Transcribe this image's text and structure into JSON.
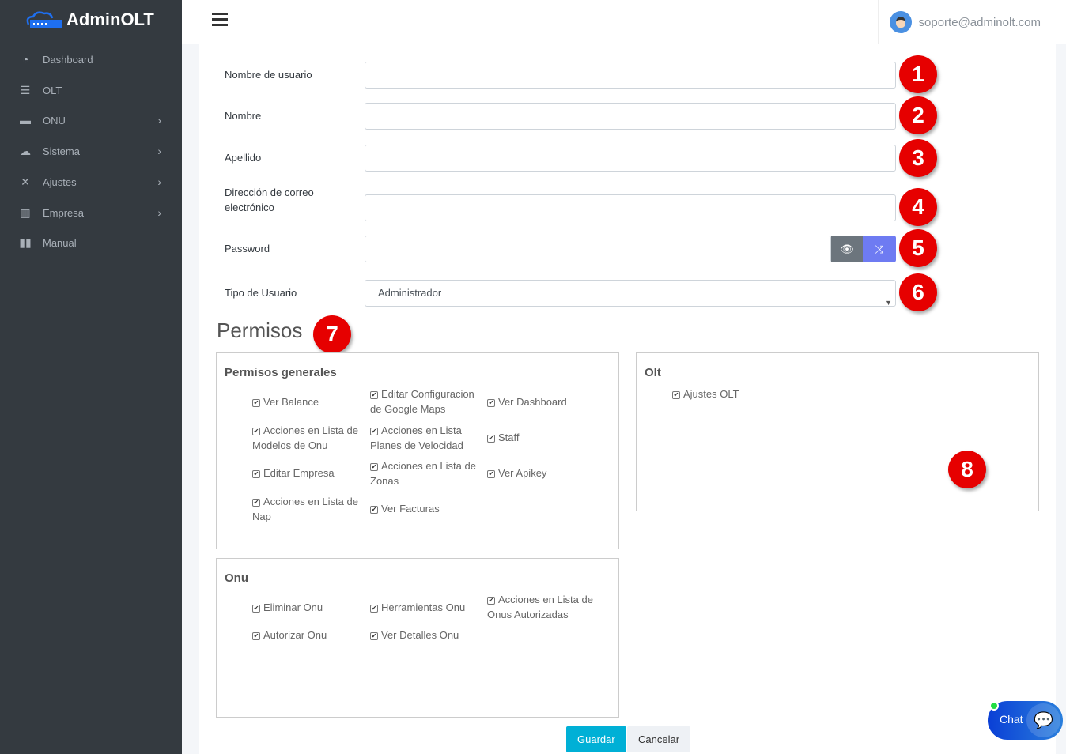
{
  "app": {
    "brand": "AdminOLT"
  },
  "sidebar": {
    "items": [
      {
        "label": "Dashboard",
        "icon": "tachometer-icon",
        "glyph": "◔",
        "submenu": false
      },
      {
        "label": "OLT",
        "icon": "server-icon",
        "glyph": "☰",
        "submenu": false
      },
      {
        "label": "ONU",
        "icon": "hdd-icon",
        "glyph": "▬",
        "submenu": true
      },
      {
        "label": "Sistema",
        "icon": "cloud-icon",
        "glyph": "☁",
        "submenu": true
      },
      {
        "label": "Ajustes",
        "icon": "tools-icon",
        "glyph": "✕",
        "submenu": true
      },
      {
        "label": "Empresa",
        "icon": "building-icon",
        "glyph": "▥",
        "submenu": true
      },
      {
        "label": "Manual",
        "icon": "book-icon",
        "glyph": "▮▮",
        "submenu": false
      }
    ]
  },
  "header": {
    "user_email": "soporte@adminolt.com"
  },
  "form": {
    "username_label": "Nombre de usuario",
    "username_value": "",
    "name_label": "Nombre",
    "name_value": "",
    "lastname_label": "Apellido",
    "lastname_value": "",
    "email_label_1": "Dirección de correo",
    "email_label_2": "electrónico",
    "email_value": "",
    "password_label": "Password",
    "password_value": "",
    "user_type_label": "Tipo de Usuario",
    "user_type_value": "Administrador"
  },
  "annotations": [
    "1",
    "2",
    "3",
    "4",
    "5",
    "6",
    "7",
    "8"
  ],
  "permissions": {
    "title": "Permisos",
    "general": {
      "title": "Permisos generales",
      "items": [
        {
          "l1": "Ver Balance",
          "l2": ""
        },
        {
          "l1": "Editar Configuracion",
          "l2": "de Google Maps"
        },
        {
          "l1": "Ver Dashboard",
          "l2": ""
        },
        {
          "l1": "Acciones en Lista de",
          "l2": "Modelos de Onu"
        },
        {
          "l1": "Acciones en Lista",
          "l2": "Planes de Velocidad"
        },
        {
          "l1": "Staff",
          "l2": ""
        },
        {
          "l1": "Editar Empresa",
          "l2": ""
        },
        {
          "l1": "Acciones en Lista de",
          "l2": "Zonas"
        },
        {
          "l1": "Ver Apikey",
          "l2": ""
        },
        {
          "l1": "Acciones en Lista de",
          "l2": "Nap"
        },
        {
          "l1": "Ver Facturas",
          "l2": ""
        }
      ]
    },
    "olt": {
      "title": "Olt",
      "items": [
        {
          "l1": "Ajustes OLT",
          "l2": ""
        }
      ]
    },
    "onu": {
      "title": "Onu",
      "items": [
        {
          "l1": "Eliminar Onu",
          "l2": ""
        },
        {
          "l1": "Herramientas Onu",
          "l2": ""
        },
        {
          "l1": "Acciones en Lista de",
          "l2": "Onus Autorizadas"
        },
        {
          "l1": "Autorizar Onu",
          "l2": ""
        },
        {
          "l1": "Ver Detalles Onu",
          "l2": ""
        }
      ]
    }
  },
  "actions": {
    "save": "Guardar",
    "cancel": "Cancelar"
  },
  "chat": {
    "label": "Chat"
  },
  "colors": {
    "sidebar": "#343a40",
    "save": "#00b0d6",
    "badge": "#e60000",
    "shuffle": "#6e7bf2"
  }
}
